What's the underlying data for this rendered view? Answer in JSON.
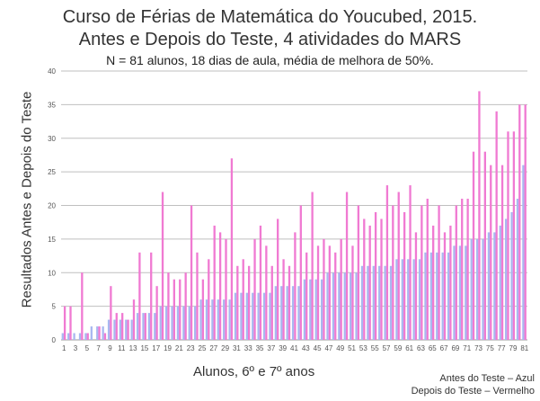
{
  "chart_data": {
    "type": "bar",
    "title": "Curso de Férias de Matemática do Youcubed, 2015.",
    "subtitle": "Antes e Depois do Teste, 4 atividades do MARS",
    "subtitle2": "N = 81 alunos, 18 dias de aula, média de melhora de 50%.",
    "xlabel": "Alunos, 6º e 7º anos",
    "ylabel": "Resultados Antes e Depois do Teste",
    "ylim": [
      0,
      40
    ],
    "yticks": [
      "0",
      "5",
      "10",
      "15",
      "20",
      "25",
      "30",
      "35",
      "40"
    ],
    "xtick_labels": [
      "1",
      "3",
      "5",
      "7",
      "9",
      "11",
      "13",
      "15",
      "17",
      "19",
      "21",
      "23",
      "25",
      "27",
      "29",
      "31",
      "33",
      "35",
      "37",
      "39",
      "41",
      "43",
      "45",
      "47",
      "49",
      "51",
      "53",
      "55",
      "57",
      "59",
      "61",
      "63",
      "65",
      "67",
      "69",
      "71",
      "73",
      "75",
      "77",
      "79",
      "81"
    ],
    "categories": [
      1,
      2,
      3,
      4,
      5,
      6,
      7,
      8,
      9,
      10,
      11,
      12,
      13,
      14,
      15,
      16,
      17,
      18,
      19,
      20,
      21,
      22,
      23,
      24,
      25,
      26,
      27,
      28,
      29,
      30,
      31,
      32,
      33,
      34,
      35,
      36,
      37,
      38,
      39,
      40,
      41,
      42,
      43,
      44,
      45,
      46,
      47,
      48,
      49,
      50,
      51,
      52,
      53,
      54,
      55,
      56,
      57,
      58,
      59,
      60,
      61,
      62,
      63,
      64,
      65,
      66,
      67,
      68,
      69,
      70,
      71,
      72,
      73,
      74,
      75,
      76,
      77,
      78,
      79,
      80,
      81
    ],
    "grid": true,
    "series": [
      {
        "name": "Antes do Teste",
        "color": "#a9b8f0",
        "values": [
          1,
          1,
          1,
          1,
          1,
          2,
          2,
          2,
          3,
          3,
          3,
          3,
          3,
          4,
          4,
          4,
          4,
          5,
          5,
          5,
          5,
          5,
          5,
          5,
          6,
          6,
          6,
          6,
          6,
          6,
          7,
          7,
          7,
          7,
          7,
          7,
          7,
          8,
          8,
          8,
          8,
          8,
          9,
          9,
          9,
          9,
          10,
          10,
          10,
          10,
          10,
          10,
          11,
          11,
          11,
          11,
          11,
          11,
          12,
          12,
          12,
          12,
          12,
          13,
          13,
          13,
          13,
          13,
          14,
          14,
          14,
          15,
          15,
          15,
          16,
          16,
          17,
          18,
          19,
          21,
          26
        ]
      },
      {
        "name": "Depois do Teste",
        "color": "#f07ad2",
        "values": [
          5,
          5,
          0,
          10,
          1,
          0,
          2,
          1,
          8,
          4,
          4,
          3,
          6,
          13,
          4,
          13,
          8,
          22,
          10,
          9,
          9,
          10,
          20,
          13,
          9,
          12,
          17,
          16,
          15,
          27,
          11,
          12,
          11,
          15,
          17,
          14,
          11,
          18,
          12,
          11,
          16,
          20,
          13,
          22,
          14,
          15,
          14,
          13,
          15,
          22,
          14,
          20,
          18,
          17,
          19,
          18,
          23,
          20,
          22,
          19,
          23,
          16,
          20,
          21,
          17,
          20,
          16,
          17,
          20,
          21,
          21,
          28,
          37,
          28,
          26,
          34,
          26,
          31,
          31,
          35,
          35
        ]
      }
    ]
  },
  "legend": {
    "before": "Antes do Teste – Azul",
    "after": "Depois do Teste – Vermelho"
  }
}
